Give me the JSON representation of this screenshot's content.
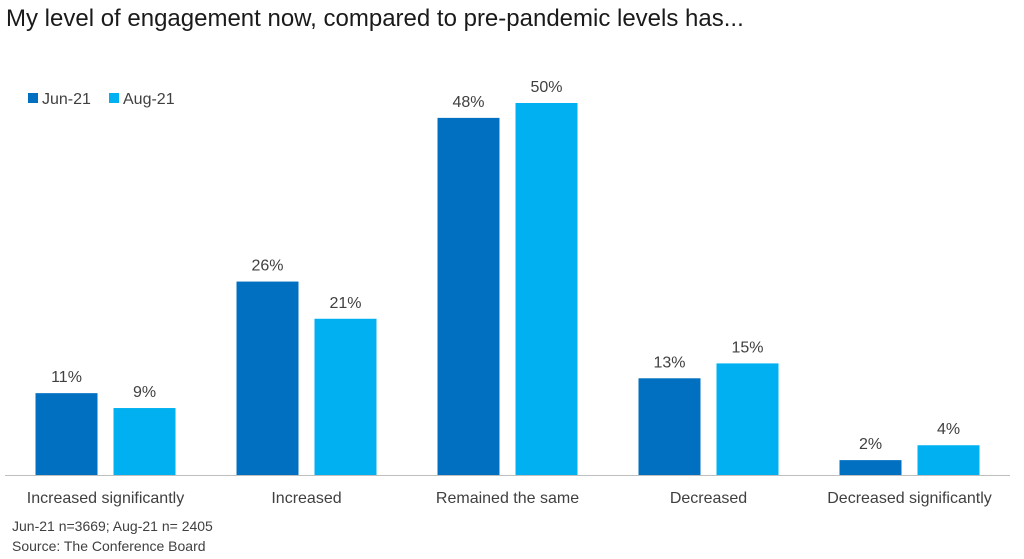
{
  "colors": {
    "series1": "#0270C0",
    "series2": "#00B0F0",
    "axis": "#BFBFBF"
  },
  "notes": [
    "Jun-21 n=3669; Aug-21 n= 2405",
    "Source: The Conference Board"
  ],
  "chart_data": {
    "type": "bar",
    "title": "My level of engagement now, compared to pre-pandemic levels has...",
    "xlabel": "",
    "ylabel": "",
    "ylim": [
      0,
      50
    ],
    "grid": false,
    "legend": "top-left",
    "categories": [
      "Increased significantly",
      "Increased",
      "Remained the same",
      "Decreased",
      "Decreased significantly"
    ],
    "series": [
      {
        "name": "Jun-21",
        "values": [
          11,
          26,
          48,
          13,
          2
        ],
        "labels": [
          "11%",
          "26%",
          "48%",
          "13%",
          "2%"
        ]
      },
      {
        "name": "Aug-21",
        "values": [
          9,
          21,
          50,
          15,
          4
        ],
        "labels": [
          "9%",
          "21%",
          "50%",
          "15%",
          "4%"
        ]
      }
    ]
  }
}
